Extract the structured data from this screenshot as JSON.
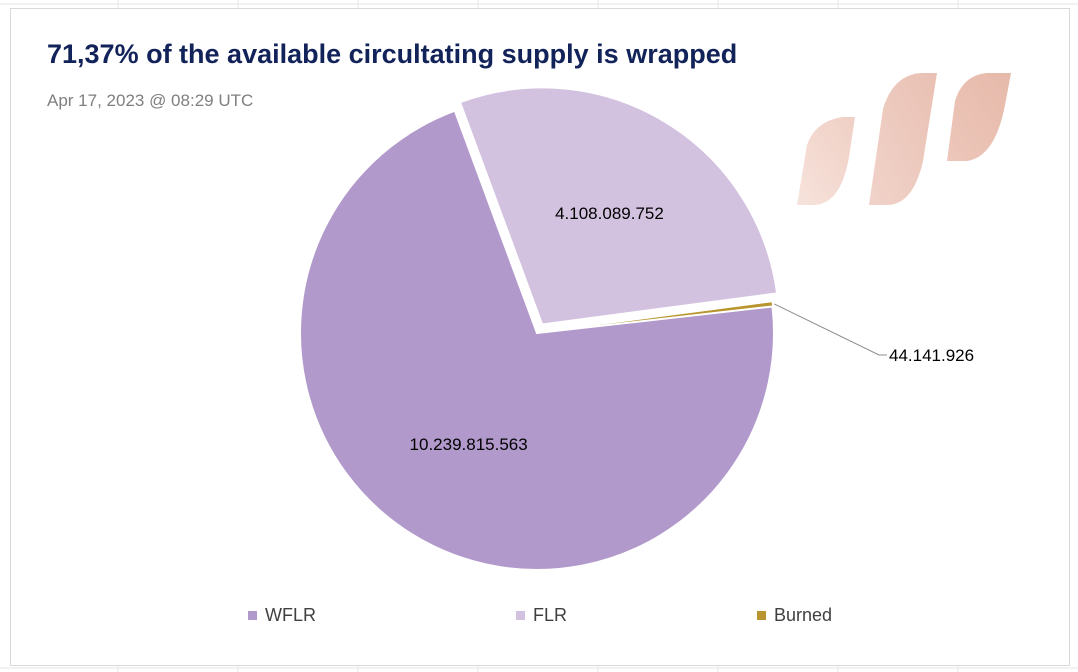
{
  "title": "71,37% of the available circultating supply is wrapped",
  "subtitle": "Apr 17, 2023 @ 08:29 UTC",
  "logo_icon": "flare-logo-icon",
  "chart_data": {
    "type": "pie",
    "title": "71,37% of the available circultating supply is wrapped",
    "subtitle": "Apr 17, 2023 @ 08:29 UTC",
    "categories": [
      "WFLR",
      "FLR",
      "Burned"
    ],
    "values": [
      10239815563,
      4108089752,
      44141926
    ],
    "data_labels": [
      "10.239.815.563",
      "4.108.089.752",
      "44.141.926"
    ],
    "colors": [
      "#b299cb",
      "#d3c1e0",
      "#b8952e"
    ],
    "legend_position": "bottom"
  }
}
